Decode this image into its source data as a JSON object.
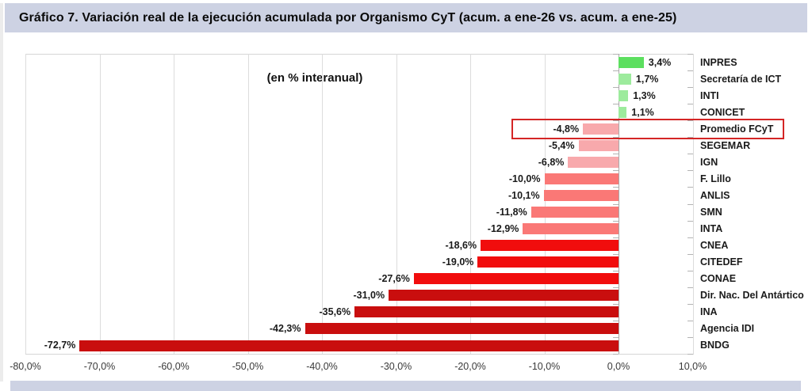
{
  "title": "Gráfico 7. Variación real de la ejecución acumulada por Organismo CyT (acum. a ene-26 vs. acum. a ene-25)",
  "annotation": "(en % interanual)",
  "colors": {
    "header_band": "#cdd2e3",
    "green_strong": "#5cdf5f",
    "green_light": "#9deb9d",
    "pink_light": "#f8a9ac",
    "salmon": "#fa7876",
    "red_bright": "#f10d0d",
    "red_dark": "#c90e0e",
    "highlight_border": "#d42525"
  },
  "chart_data": {
    "type": "bar",
    "orientation": "horizontal",
    "title": "Gráfico 7. Variación real de la ejecución acumulada por Organismo CyT (acum. a ene-26 vs. acum. a ene-25)",
    "annotation": "(en % interanual)",
    "categories": [
      "INPRES",
      "Secretaría de ICT",
      "INTI",
      "CONICET",
      "Promedio FCyT",
      "SEGEMAR",
      "IGN",
      "F. Lillo",
      "ANLIS",
      "SMN",
      "INTA",
      "CNEA",
      "CITEDEF",
      "CONAE",
      "Dir. Nac. Del Antártico",
      "INA",
      "Agencia IDI",
      "BNDG"
    ],
    "values": [
      3.4,
      1.7,
      1.3,
      1.1,
      -4.8,
      -5.4,
      -6.8,
      -10.0,
      -10.1,
      -11.8,
      -12.9,
      -18.6,
      -19.0,
      -27.6,
      -31.0,
      -35.6,
      -42.3,
      -72.7
    ],
    "value_labels": [
      "3,4%",
      "1,7%",
      "1,3%",
      "1,1%",
      "-4,8%",
      "-5,4%",
      "-6,8%",
      "-10,0%",
      "-10,1%",
      "-11,8%",
      "-12,9%",
      "-18,6%",
      "-19,0%",
      "-27,6%",
      "-31,0%",
      "-35,6%",
      "-42,3%",
      "-72,7%"
    ],
    "bar_colors": [
      "#5cdf5f",
      "#9deb9d",
      "#9deb9d",
      "#9deb9d",
      "#f8a9ac",
      "#f8a9ac",
      "#f8a9ac",
      "#fa7876",
      "#fa7876",
      "#fa7876",
      "#fa7876",
      "#f10d0d",
      "#f10d0d",
      "#f10d0d",
      "#c90e0e",
      "#c90e0e",
      "#c90e0e",
      "#c90e0e"
    ],
    "xlim": [
      -80,
      10
    ],
    "x_ticks": [
      "-80,0%",
      "-70,0%",
      "-60,0%",
      "-50,0%",
      "-40,0%",
      "-30,0%",
      "-20,0%",
      "-10,0%",
      "0,0%",
      "10,0%"
    ],
    "x_tick_values": [
      -80,
      -70,
      -60,
      -50,
      -40,
      -30,
      -20,
      -10,
      0,
      10
    ],
    "grid": true,
    "legend": "none",
    "highlight": {
      "category": "Promedio FCyT",
      "index": 4,
      "label": "Promedio FCyT"
    }
  }
}
